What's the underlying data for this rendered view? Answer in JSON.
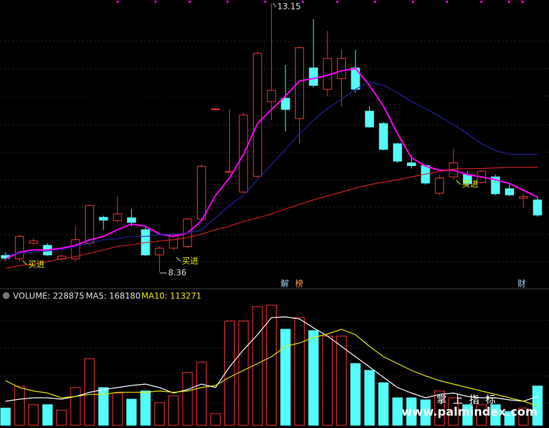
{
  "chart_data": [
    {
      "type": "candlestick",
      "ylim": [
        8.08,
        13.21
      ],
      "up_color": "#ff3232",
      "down_color": "#54fcfc",
      "open": [
        8.66,
        8.6,
        8.88,
        8.84,
        8.6,
        8.6,
        8.88,
        9.34,
        9.28,
        9.33,
        9.12,
        8.67,
        8.79,
        8.82,
        9.31,
        11.27,
        10.14,
        9.79,
        10.07,
        11.4,
        11.46,
        11.1,
        12.0,
        11.62,
        11.81,
        12.0,
        11.23,
        11.01,
        10.65,
        10.31,
        10.26,
        9.77,
        10.06,
        10.1,
        9.96,
        10.06,
        9.85,
        9.68,
        9.65
      ],
      "close": [
        8.61,
        9.0,
        8.92,
        8.67,
        8.65,
        8.94,
        9.55,
        9.29,
        9.4,
        9.25,
        8.67,
        8.79,
        9.03,
        9.31,
        10.25,
        11.27,
        10.16,
        11.16,
        12.26,
        11.6,
        11.26,
        12.36,
        11.69,
        12.17,
        12.17,
        11.62,
        10.95,
        10.55,
        10.34,
        10.26,
        9.95,
        10.04,
        10.31,
        9.94,
        10.16,
        9.76,
        9.74,
        9.71,
        9.38
      ],
      "high": [
        8.72,
        9.03,
        8.96,
        8.88,
        8.67,
        9.18,
        9.57,
        9.37,
        9.71,
        9.49,
        9.18,
        8.82,
        9.06,
        9.33,
        10.28,
        11.27,
        11.26,
        11.2,
        12.3,
        13.15,
        12.05,
        12.38,
        12.87,
        12.66,
        12.33,
        12.32,
        11.32,
        11.04,
        10.67,
        10.43,
        10.28,
        10.1,
        10.56,
        10.16,
        10.18,
        10.1,
        9.92,
        9.76,
        9.7
      ],
      "low": [
        8.57,
        8.55,
        8.84,
        8.65,
        8.57,
        8.55,
        8.84,
        9.12,
        9.25,
        9.18,
        8.65,
        8.36,
        8.76,
        8.79,
        9.28,
        11.27,
        10.14,
        9.77,
        10.04,
        11.07,
        10.87,
        10.65,
        11.65,
        11.5,
        11.32,
        11.56,
        10.93,
        10.53,
        10.31,
        10.21,
        9.92,
        9.73,
        10.01,
        9.89,
        9.94,
        9.73,
        9.72,
        9.51,
        9.35
      ],
      "series": [
        {
          "color": "#ff00ff",
          "values": [
            8.6,
            8.72,
            8.76,
            8.76,
            8.79,
            8.84,
            8.94,
            9.0,
            9.12,
            9.22,
            9.18,
            9.04,
            9.0,
            9.06,
            9.28,
            9.73,
            10.04,
            10.46,
            11.01,
            11.26,
            11.5,
            11.77,
            11.81,
            11.87,
            11.95,
            11.99,
            11.69,
            11.32,
            10.83,
            10.4,
            10.25,
            10.18,
            10.18,
            10.1,
            10.06,
            10.01,
            9.94,
            9.82,
            9.7
          ]
        },
        {
          "color": "#2020a8",
          "values": [
            8.67,
            8.7,
            8.72,
            8.74,
            8.77,
            8.82,
            8.88,
            8.94,
            8.96,
            9.0,
            9.0,
            9.03,
            9.04,
            9.06,
            9.12,
            9.33,
            9.55,
            9.73,
            10.01,
            10.28,
            10.55,
            10.83,
            11.07,
            11.28,
            11.44,
            11.62,
            11.75,
            11.69,
            11.56,
            11.4,
            11.28,
            11.14,
            10.99,
            10.83,
            10.65,
            10.53,
            10.46,
            10.46,
            10.46
          ]
        },
        {
          "color": "#d02020",
          "values": [
            8.43,
            8.48,
            8.51,
            8.55,
            8.6,
            8.64,
            8.7,
            8.76,
            8.82,
            8.85,
            8.89,
            8.92,
            8.94,
            8.98,
            9.04,
            9.12,
            9.18,
            9.27,
            9.33,
            9.4,
            9.49,
            9.57,
            9.65,
            9.72,
            9.79,
            9.86,
            9.92,
            9.97,
            10.01,
            10.06,
            10.11,
            10.16,
            10.2,
            10.21,
            10.21,
            10.22,
            10.23,
            10.23,
            10.23
          ]
        }
      ],
      "annotations": [
        "13.15",
        "8.36",
        "买进",
        "买进",
        "买进"
      ],
      "events": [
        "解",
        "榜",
        "财"
      ]
    },
    {
      "type": "volume",
      "ylim": [
        0,
        720000
      ],
      "legend": [
        "VOLUME: 228875",
        "MA5: 168180",
        "MA10: 113271"
      ],
      "values": [
        100000,
        228000,
        120000,
        120000,
        88000,
        220000,
        388000,
        220000,
        188000,
        152000,
        200000,
        132000,
        172000,
        308000,
        368000,
        68000,
        608000,
        608000,
        692000,
        700000,
        560000,
        628000,
        552000,
        520000,
        520000,
        360000,
        320000,
        248000,
        160000,
        160000,
        148000,
        200000,
        160000,
        120000,
        120000,
        120000,
        80000,
        100000,
        228875
      ],
      "series": [
        {
          "color": "#ffffff",
          "values": [
            140000,
            152000,
            160000,
            160000,
            152000,
            168000,
            192000,
            208000,
            220000,
            232000,
            240000,
            220000,
            188000,
            208000,
            240000,
            220000,
            340000,
            440000,
            528000,
            628000,
            632000,
            620000,
            568000,
            520000,
            460000,
            400000,
            340000,
            280000,
            220000,
            188000,
            160000,
            180000,
            188000,
            168000,
            160000,
            160000,
            148000,
            140000,
            168180
          ]
        },
        {
          "color": "#e8e800",
          "values": [
            260000,
            220000,
            200000,
            188000,
            160000,
            168000,
            180000,
            180000,
            192000,
            192000,
            192000,
            200000,
            192000,
            200000,
            220000,
            232000,
            280000,
            320000,
            360000,
            400000,
            460000,
            480000,
            512000,
            532000,
            560000,
            528000,
            460000,
            400000,
            360000,
            320000,
            288000,
            260000,
            240000,
            220000,
            200000,
            180000,
            160000,
            140000,
            113271
          ]
        }
      ]
    },
    {
      "type": "watermark",
      "title": "掌 上 指 标",
      "subtitle": "www.palmindex.com"
    }
  ]
}
